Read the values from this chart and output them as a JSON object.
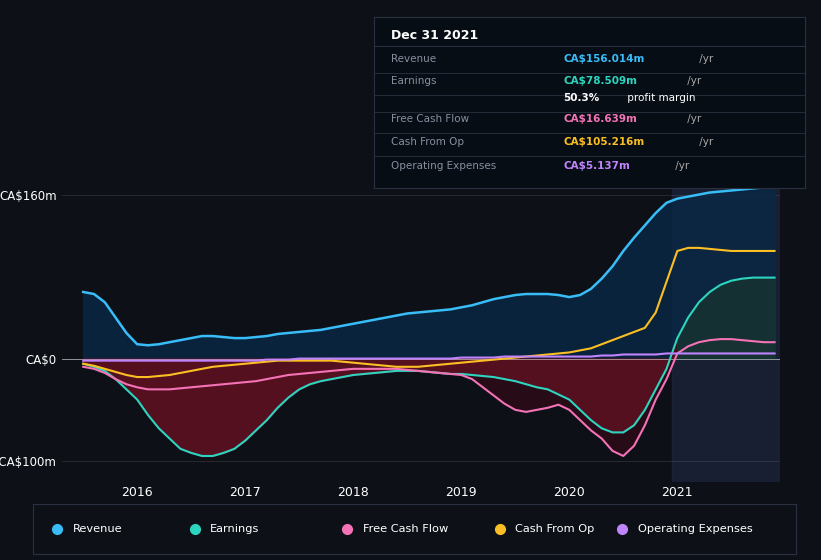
{
  "bg_color": "#0d1117",
  "xlim": [
    2015.3,
    2021.95
  ],
  "ylim": [
    -120,
    175
  ],
  "info_box": {
    "date": "Dec 31 2021",
    "rows": [
      {
        "label": "Revenue",
        "value": "CA$156.014m",
        "suffix": " /yr",
        "color": "#38bdf8"
      },
      {
        "label": "Earnings",
        "value": "CA$78.509m",
        "suffix": " /yr",
        "color": "#2dd4bf"
      },
      {
        "label": "",
        "value": "50.3%",
        "suffix": " profit margin",
        "color": "#ffffff"
      },
      {
        "label": "Free Cash Flow",
        "value": "CA$16.639m",
        "suffix": " /yr",
        "color": "#f472b6"
      },
      {
        "label": "Cash From Op",
        "value": "CA$105.216m",
        "suffix": " /yr",
        "color": "#fbbf24"
      },
      {
        "label": "Operating Expenses",
        "value": "CA$5.137m",
        "suffix": " /yr",
        "color": "#c084fc"
      }
    ]
  },
  "legend": [
    {
      "label": "Revenue",
      "color": "#38bdf8"
    },
    {
      "label": "Earnings",
      "color": "#2dd4bf"
    },
    {
      "label": "Free Cash Flow",
      "color": "#f472b6"
    },
    {
      "label": "Cash From Op",
      "color": "#fbbf24"
    },
    {
      "label": "Operating Expenses",
      "color": "#c084fc"
    }
  ],
  "series": {
    "x": [
      2015.5,
      2015.6,
      2015.7,
      2015.8,
      2015.9,
      2016.0,
      2016.1,
      2016.2,
      2016.3,
      2016.4,
      2016.5,
      2016.6,
      2016.7,
      2016.8,
      2016.9,
      2017.0,
      2017.1,
      2017.2,
      2017.3,
      2017.4,
      2017.5,
      2017.6,
      2017.7,
      2017.8,
      2017.9,
      2018.0,
      2018.1,
      2018.2,
      2018.3,
      2018.4,
      2018.5,
      2018.6,
      2018.7,
      2018.8,
      2018.9,
      2019.0,
      2019.1,
      2019.2,
      2019.3,
      2019.4,
      2019.5,
      2019.6,
      2019.7,
      2019.8,
      2019.9,
      2020.0,
      2020.1,
      2020.2,
      2020.3,
      2020.4,
      2020.5,
      2020.6,
      2020.7,
      2020.8,
      2020.9,
      2021.0,
      2021.1,
      2021.2,
      2021.3,
      2021.4,
      2021.5,
      2021.6,
      2021.7,
      2021.8,
      2021.9
    ],
    "revenue": [
      65,
      63,
      55,
      40,
      25,
      14,
      13,
      14,
      16,
      18,
      20,
      22,
      22,
      21,
      20,
      20,
      21,
      22,
      24,
      25,
      26,
      27,
      28,
      30,
      32,
      34,
      36,
      38,
      40,
      42,
      44,
      45,
      46,
      47,
      48,
      50,
      52,
      55,
      58,
      60,
      62,
      63,
      63,
      63,
      62,
      60,
      62,
      68,
      78,
      90,
      105,
      118,
      130,
      142,
      152,
      156,
      158,
      160,
      162,
      163,
      164,
      165,
      166,
      167,
      168
    ],
    "earnings": [
      -5,
      -8,
      -12,
      -20,
      -30,
      -40,
      -55,
      -68,
      -78,
      -88,
      -92,
      -95,
      -95,
      -92,
      -88,
      -80,
      -70,
      -60,
      -48,
      -38,
      -30,
      -25,
      -22,
      -20,
      -18,
      -16,
      -15,
      -14,
      -13,
      -12,
      -12,
      -12,
      -13,
      -14,
      -15,
      -15,
      -16,
      -17,
      -18,
      -20,
      -22,
      -25,
      -28,
      -30,
      -35,
      -40,
      -50,
      -60,
      -68,
      -72,
      -72,
      -65,
      -50,
      -30,
      -10,
      20,
      40,
      55,
      65,
      72,
      76,
      78,
      79,
      79,
      79
    ],
    "free_cash": [
      -8,
      -10,
      -14,
      -20,
      -25,
      -28,
      -30,
      -30,
      -30,
      -29,
      -28,
      -27,
      -26,
      -25,
      -24,
      -23,
      -22,
      -20,
      -18,
      -16,
      -15,
      -14,
      -13,
      -12,
      -11,
      -10,
      -10,
      -10,
      -10,
      -10,
      -11,
      -12,
      -13,
      -14,
      -15,
      -16,
      -20,
      -28,
      -36,
      -44,
      -50,
      -52,
      -50,
      -48,
      -45,
      -50,
      -60,
      -70,
      -78,
      -90,
      -95,
      -85,
      -65,
      -40,
      -20,
      5,
      12,
      16,
      18,
      19,
      19,
      18,
      17,
      16,
      16
    ],
    "cash_from_op": [
      -5,
      -7,
      -10,
      -13,
      -16,
      -18,
      -18,
      -17,
      -16,
      -14,
      -12,
      -10,
      -8,
      -7,
      -6,
      -5,
      -4,
      -3,
      -2,
      -2,
      -2,
      -2,
      -2,
      -2,
      -3,
      -4,
      -5,
      -6,
      -7,
      -8,
      -8,
      -8,
      -7,
      -6,
      -5,
      -4,
      -3,
      -2,
      -1,
      0,
      1,
      2,
      3,
      4,
      5,
      6,
      8,
      10,
      14,
      18,
      22,
      26,
      30,
      45,
      75,
      105,
      108,
      108,
      107,
      106,
      105,
      105,
      105,
      105,
      105
    ],
    "op_expenses": [
      -2,
      -2,
      -2,
      -2,
      -2,
      -2,
      -2,
      -2,
      -2,
      -2,
      -2,
      -2,
      -2,
      -2,
      -2,
      -2,
      -2,
      -1,
      -1,
      -1,
      0,
      0,
      0,
      0,
      0,
      0,
      0,
      0,
      0,
      0,
      0,
      0,
      0,
      0,
      0,
      1,
      1,
      1,
      1,
      2,
      2,
      2,
      2,
      2,
      2,
      2,
      2,
      2,
      3,
      3,
      4,
      4,
      4,
      4,
      5,
      5,
      5,
      5,
      5,
      5,
      5,
      5,
      5,
      5,
      5
    ]
  }
}
